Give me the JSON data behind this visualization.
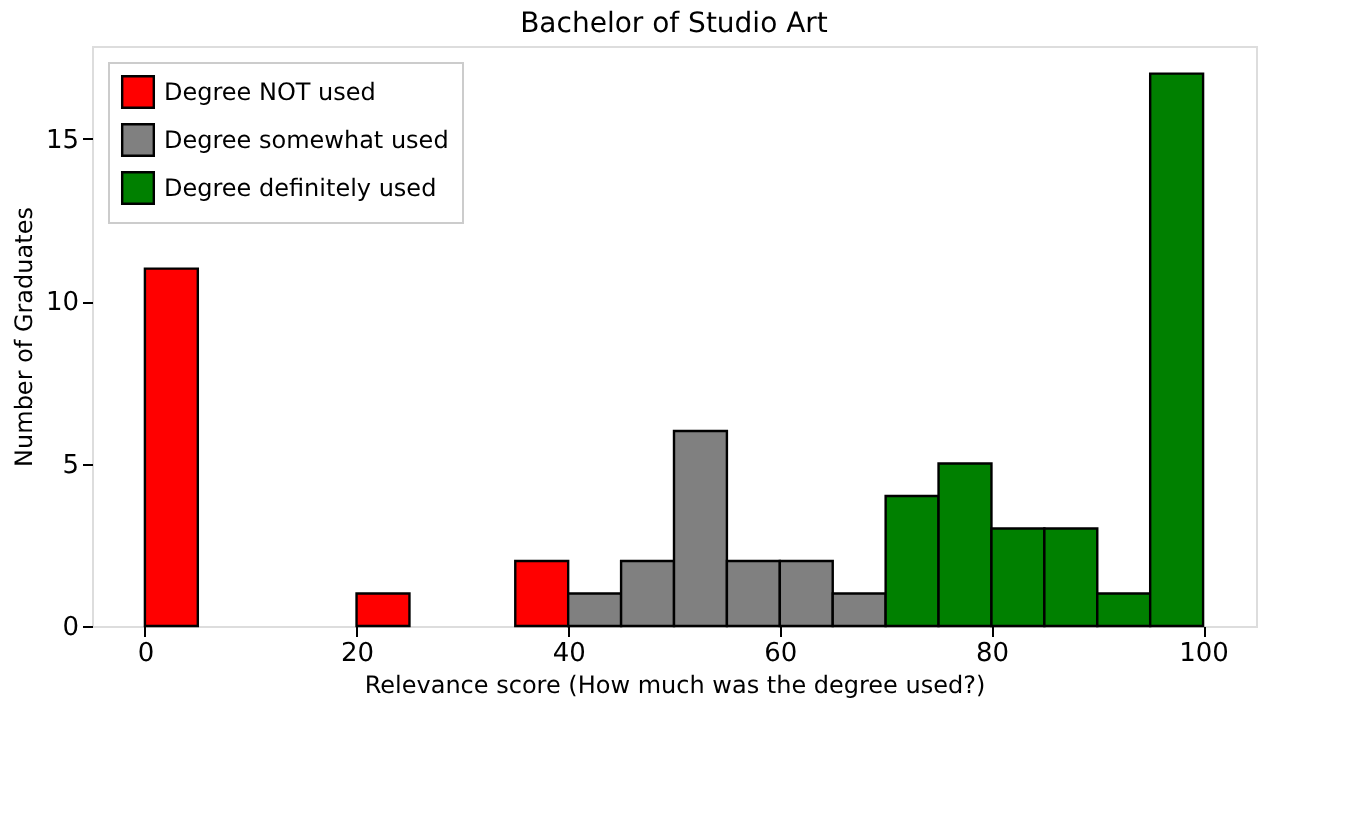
{
  "chart_data": {
    "type": "histogram",
    "title": "Bachelor of Studio Art",
    "xlabel": "Relevance score (How much was the degree used?)",
    "ylabel": "Number of Graduates",
    "bins": [
      0,
      5,
      10,
      15,
      20,
      25,
      30,
      35,
      40,
      45,
      50,
      55,
      60,
      65,
      70,
      75,
      80,
      85,
      90,
      95,
      100
    ],
    "series": [
      {
        "name": "Degree NOT used",
        "color": "#ff0000",
        "values": [
          11,
          null,
          null,
          null,
          1,
          null,
          null,
          2,
          null,
          null,
          null,
          null,
          null,
          null,
          null,
          null,
          null,
          null,
          null,
          null
        ]
      },
      {
        "name": "Degree somewhat used",
        "color": "#808080",
        "values": [
          null,
          null,
          null,
          null,
          null,
          null,
          null,
          null,
          1,
          2,
          6,
          2,
          2,
          1,
          null,
          null,
          null,
          null,
          null,
          null
        ]
      },
      {
        "name": "Degree definitely used",
        "color": "#008000",
        "values": [
          null,
          null,
          null,
          null,
          null,
          null,
          null,
          null,
          null,
          null,
          null,
          null,
          null,
          null,
          4,
          5,
          3,
          3,
          1,
          17
        ]
      }
    ],
    "xlim": [
      -5,
      105
    ],
    "xticks": [
      0,
      20,
      40,
      60,
      80,
      100
    ],
    "ylim": [
      0,
      17.85
    ],
    "yticks": [
      0,
      5,
      10,
      15
    ],
    "grid": false,
    "legend": "top left"
  }
}
